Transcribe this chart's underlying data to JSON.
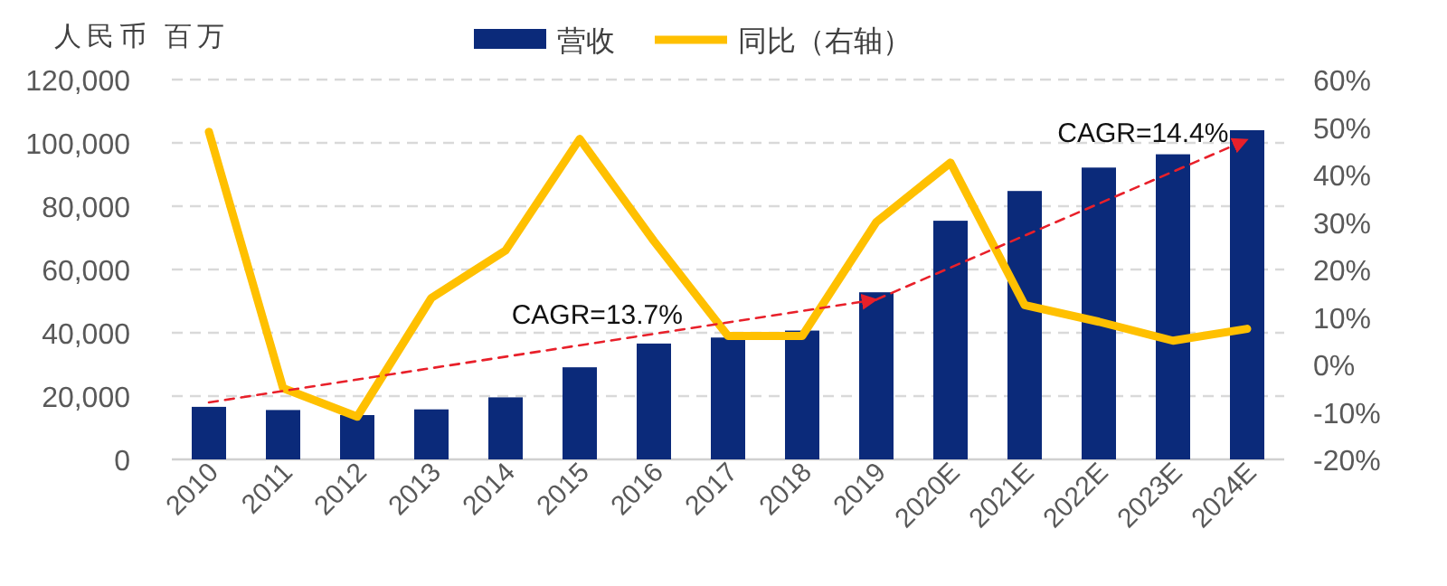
{
  "chart_data": {
    "type": "bar",
    "ylabel": "人民币 百万",
    "categories": [
      "2010",
      "2011",
      "2012",
      "2013",
      "2014",
      "2015",
      "2016",
      "2017",
      "2018",
      "2019",
      "2020E",
      "2021E",
      "2022E",
      "2023E",
      "2024E"
    ],
    "series": [
      {
        "name": "营收",
        "color": "#0b2a7a",
        "values": [
          16600,
          15600,
          14000,
          15800,
          19600,
          29100,
          36600,
          38500,
          40700,
          52800,
          75400,
          84800,
          92200,
          96400,
          104000
        ]
      },
      {
        "name": "同比（右轴）",
        "type": "line",
        "axis": "y2",
        "color": "#ffc000",
        "values": [
          49,
          -5,
          -11,
          14,
          24,
          47.5,
          26,
          6,
          6,
          30,
          42.5,
          12.5,
          9,
          5,
          7.5
        ]
      },
      {
        "name": "CAGR=13.7%",
        "type": "line",
        "color": "#e8202a",
        "line_style": "dashed",
        "values": [
          18000,
          null,
          null,
          null,
          null,
          null,
          null,
          null,
          null,
          50500,
          null,
          null,
          null,
          null,
          null
        ]
      },
      {
        "name": "CAGR=14.4%",
        "type": "line",
        "color": "#e8202a",
        "line_style": "dashed",
        "values": [
          null,
          null,
          null,
          null,
          null,
          null,
          null,
          null,
          null,
          50500,
          null,
          null,
          null,
          null,
          101000
        ]
      }
    ],
    "ylim": [
      0,
      120000
    ],
    "yticks": [
      0,
      {
        "value": 20000,
        "label": "20,000"
      },
      {
        "value": 40000,
        "label": "40,000"
      },
      {
        "value": 60000,
        "label": "60,000"
      },
      {
        "value": 80000,
        "label": "80,000"
      },
      {
        "value": 100000,
        "label": "100,000"
      },
      {
        "value": 120000,
        "label": "120,000"
      }
    ],
    "y2lim": [
      -20,
      60
    ],
    "y2ticks": [
      {
        "value": -20,
        "label": "-20%"
      },
      {
        "value": -10,
        "label": "-10%"
      },
      {
        "value": 0,
        "label": "0%"
      },
      {
        "value": 10,
        "label": "10%"
      },
      {
        "value": 20,
        "label": "20%"
      },
      {
        "value": 30,
        "label": "30%"
      },
      {
        "value": 40,
        "label": "40%"
      },
      {
        "value": 50,
        "label": "50%"
      },
      {
        "value": 60,
        "label": "60%"
      }
    ],
    "grid": "y",
    "legend": "top"
  }
}
